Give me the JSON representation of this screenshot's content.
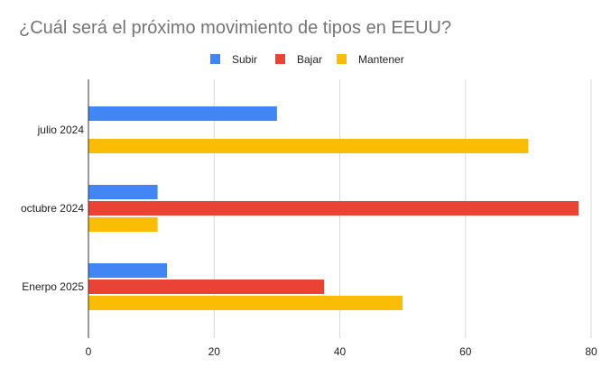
{
  "chart_data": {
    "type": "bar",
    "orientation": "horizontal",
    "title": "¿Cuál será el próximo movimiento de tipos en EEUU?",
    "categories": [
      "julio 2024",
      "octubre 2024",
      "Enerpo 2025"
    ],
    "series": [
      {
        "name": "Subir",
        "color": "#4285f4",
        "values": [
          30,
          11,
          12.5
        ]
      },
      {
        "name": "Bajar",
        "color": "#ea4335",
        "values": [
          0,
          78,
          37.5
        ]
      },
      {
        "name": "Mantener",
        "color": "#fbbc04",
        "values": [
          70,
          11,
          50
        ]
      }
    ],
    "xlim": [
      0,
      80
    ],
    "xticks": [
      "0",
      "20",
      "40",
      "60",
      "80"
    ],
    "xtick_values": [
      0,
      20,
      40,
      60,
      80
    ],
    "grid": true,
    "legend_position": "top-center",
    "xlabel": "",
    "ylabel": ""
  }
}
